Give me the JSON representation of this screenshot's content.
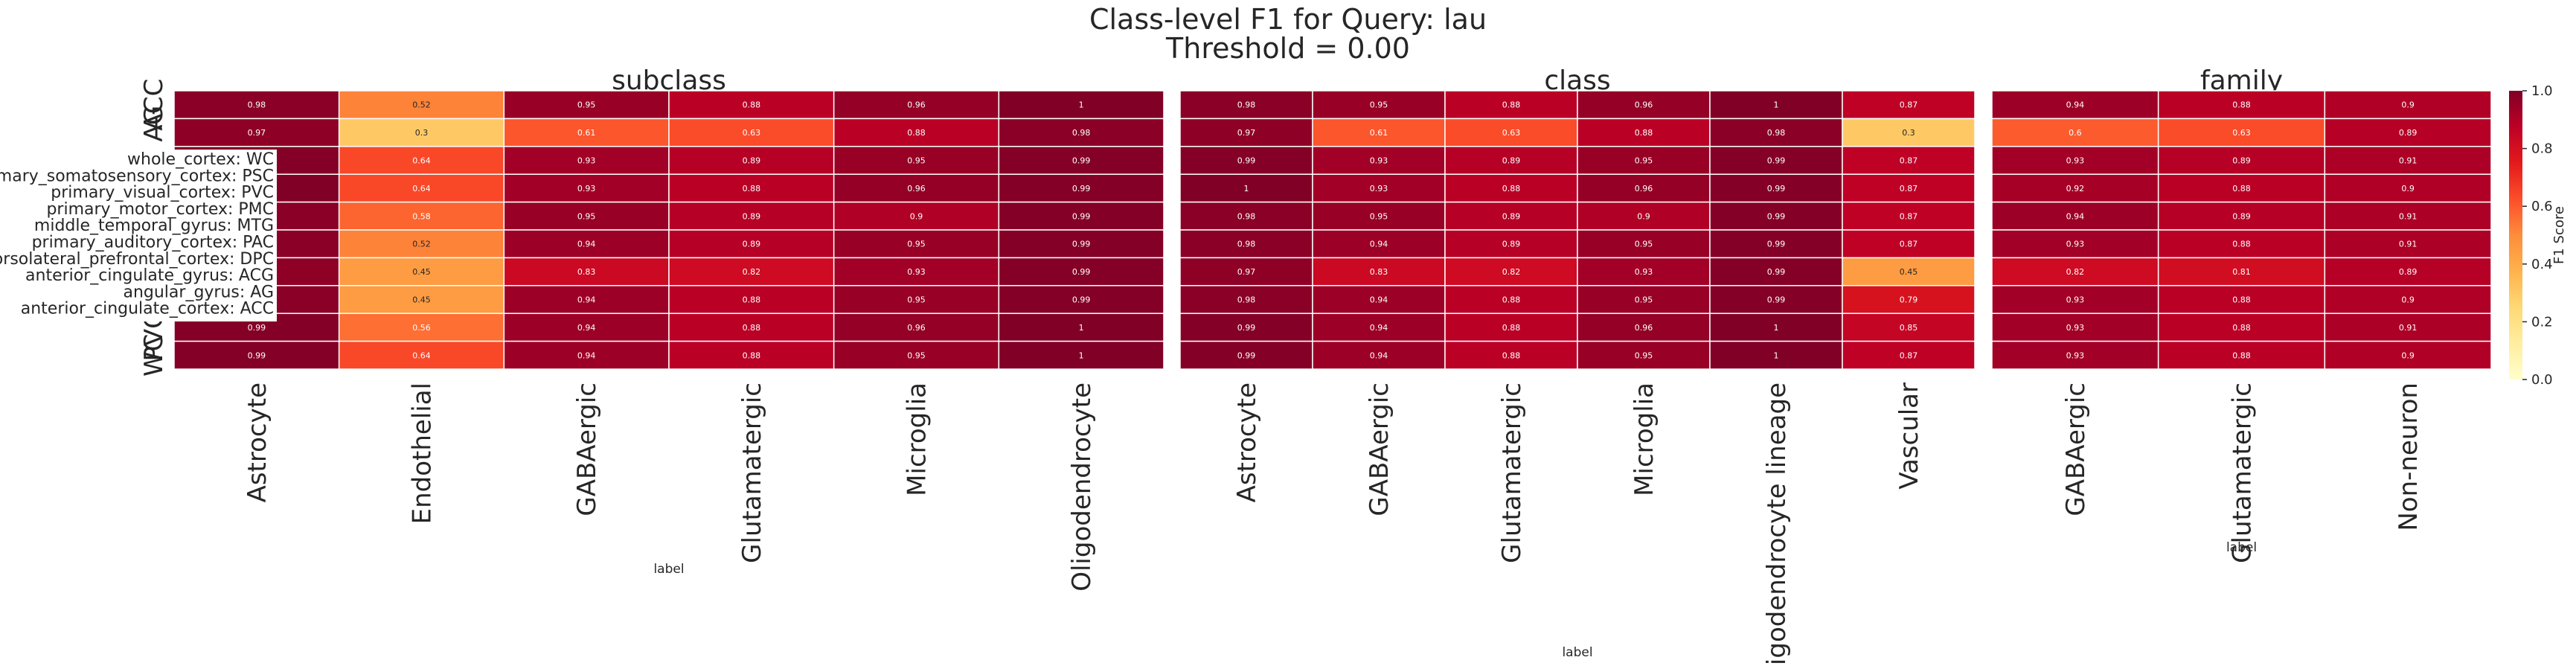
{
  "figure": {
    "title": "Class-level F1 for Query: lau",
    "subtitle": "Threshold = 0.00"
  },
  "legend": {
    "row_labels": [
      "whole_cortex: WC",
      "primary_somatosensory_cortex: PSC",
      "primary_visual_cortex: PVC",
      "primary_motor_cortex: PMC",
      "middle_temporal_gyrus: MTG",
      "primary_auditory_cortex: PAC",
      "dorsolateral_prefrontal_cortex: DPC",
      "anterior_cingulate_gyrus: ACG",
      "angular_gyrus: AG",
      "anterior_cingulate_cortex: ACC"
    ]
  },
  "y_axis": {
    "tick_labels": [
      "ACC",
      "AG",
      "",
      "",
      "",
      "",
      "",
      "",
      "",
      "",
      "PVC",
      "WC"
    ]
  },
  "colorbar": {
    "label": "F1 Score",
    "ticks": [
      "0.0",
      "0.2",
      "0.4",
      "0.6",
      "0.8",
      "1.0"
    ],
    "colormap": "YlOrRd",
    "range": [
      0,
      1
    ]
  },
  "chart_data": [
    {
      "type": "heatmap",
      "title": "subclass",
      "xlabel": "label",
      "categories": [
        "Astrocyte",
        "Endothelial",
        "GABAergic",
        "Glutamatergic",
        "Microglia",
        "Oligodendrocyte"
      ],
      "values": [
        [
          0.98,
          0.52,
          0.95,
          0.88,
          0.96,
          1
        ],
        [
          0.97,
          0.3,
          0.61,
          0.63,
          0.88,
          0.98
        ],
        [
          0.99,
          0.64,
          0.93,
          0.89,
          0.95,
          0.99
        ],
        [
          1,
          0.64,
          0.93,
          0.88,
          0.96,
          0.99
        ],
        [
          0.98,
          0.58,
          0.95,
          0.89,
          0.9,
          0.99
        ],
        [
          0.98,
          0.52,
          0.94,
          0.89,
          0.95,
          0.99
        ],
        [
          0.97,
          0.45,
          0.83,
          0.82,
          0.93,
          0.99
        ],
        [
          0.98,
          0.45,
          0.94,
          0.88,
          0.95,
          0.99
        ],
        [
          0.99,
          0.56,
          0.94,
          0.88,
          0.96,
          1
        ],
        [
          0.99,
          0.64,
          0.94,
          0.88,
          0.95,
          1
        ]
      ],
      "cell_labels": [
        [
          "0.98",
          "0.52",
          "0.95",
          "0.88",
          "0.96",
          "1"
        ],
        [
          "0.97",
          "0.3",
          "0.61",
          "0.63",
          "0.88",
          "0.98"
        ],
        [
          "",
          "0.64",
          "0.93",
          "0.89",
          "0.95",
          "0.99"
        ],
        [
          "",
          "0.64",
          "0.93",
          "0.88",
          "0.96",
          "0.99"
        ],
        [
          "",
          "0.58",
          "0.95",
          "0.89",
          "0.9",
          "0.99"
        ],
        [
          "",
          "0.52",
          "0.94",
          "0.89",
          "0.95",
          "0.99"
        ],
        [
          "",
          "0.45",
          "0.83",
          "0.82",
          "0.93",
          "0.99"
        ],
        [
          "",
          "0.45",
          "0.94",
          "0.88",
          "0.95",
          "0.99"
        ],
        [
          "0.99",
          "0.56",
          "0.94",
          "0.88",
          "0.96",
          "1"
        ],
        [
          "0.99",
          "0.64",
          "0.94",
          "0.88",
          "0.95",
          "1"
        ]
      ]
    },
    {
      "type": "heatmap",
      "title": "class",
      "xlabel": "label",
      "categories": [
        "Astrocyte",
        "GABAergic",
        "Glutamatergic",
        "Microglia",
        "Oligodendrocyte lineage",
        "Vascular"
      ],
      "values": [
        [
          0.98,
          0.95,
          0.88,
          0.96,
          1,
          0.87
        ],
        [
          0.97,
          0.61,
          0.63,
          0.88,
          0.98,
          0.3
        ],
        [
          0.99,
          0.93,
          0.89,
          0.95,
          0.99,
          0.87
        ],
        [
          1,
          0.93,
          0.88,
          0.96,
          0.99,
          0.87
        ],
        [
          0.98,
          0.95,
          0.89,
          0.9,
          0.99,
          0.87
        ],
        [
          0.98,
          0.94,
          0.89,
          0.95,
          0.99,
          0.87
        ],
        [
          0.97,
          0.83,
          0.82,
          0.93,
          0.99,
          0.45
        ],
        [
          0.98,
          0.94,
          0.88,
          0.95,
          0.99,
          0.79
        ],
        [
          0.99,
          0.94,
          0.88,
          0.96,
          1,
          0.85
        ],
        [
          0.99,
          0.94,
          0.88,
          0.95,
          1,
          0.87
        ]
      ],
      "cell_labels": [
        [
          "0.98",
          "0.95",
          "0.88",
          "0.96",
          "1",
          "0.87"
        ],
        [
          "0.97",
          "0.61",
          "0.63",
          "0.88",
          "0.98",
          "0.3"
        ],
        [
          "0.99",
          "0.93",
          "0.89",
          "0.95",
          "0.99",
          "0.87"
        ],
        [
          "1",
          "0.93",
          "0.88",
          "0.96",
          "0.99",
          "0.87"
        ],
        [
          "0.98",
          "0.95",
          "0.89",
          "0.9",
          "0.99",
          "0.87"
        ],
        [
          "0.98",
          "0.94",
          "0.89",
          "0.95",
          "0.99",
          "0.87"
        ],
        [
          "0.97",
          "0.83",
          "0.82",
          "0.93",
          "0.99",
          "0.45"
        ],
        [
          "0.98",
          "0.94",
          "0.88",
          "0.95",
          "0.99",
          "0.79"
        ],
        [
          "0.99",
          "0.94",
          "0.88",
          "0.96",
          "1",
          "0.85"
        ],
        [
          "0.99",
          "0.94",
          "0.88",
          "0.95",
          "1",
          "0.87"
        ]
      ]
    },
    {
      "type": "heatmap",
      "title": "family",
      "xlabel": "label",
      "categories": [
        "GABAergic",
        "Glutamatergic",
        "Non-neuron"
      ],
      "values": [
        [
          0.94,
          0.88,
          0.9
        ],
        [
          0.6,
          0.63,
          0.89
        ],
        [
          0.93,
          0.89,
          0.91
        ],
        [
          0.92,
          0.88,
          0.9
        ],
        [
          0.94,
          0.89,
          0.91
        ],
        [
          0.93,
          0.88,
          0.91
        ],
        [
          0.82,
          0.81,
          0.89
        ],
        [
          0.93,
          0.88,
          0.9
        ],
        [
          0.93,
          0.88,
          0.91
        ],
        [
          0.93,
          0.88,
          0.9
        ]
      ],
      "cell_labels": [
        [
          "0.94",
          "0.88",
          "0.9"
        ],
        [
          "0.6",
          "0.63",
          "0.89"
        ],
        [
          "0.93",
          "0.89",
          "0.91"
        ],
        [
          "0.92",
          "0.88",
          "0.9"
        ],
        [
          "0.94",
          "0.89",
          "0.91"
        ],
        [
          "0.93",
          "0.88",
          "0.91"
        ],
        [
          "0.82",
          "0.81",
          "0.89"
        ],
        [
          "0.93",
          "0.88",
          "0.9"
        ],
        [
          "0.93",
          "0.88",
          "0.91"
        ],
        [
          "0.93",
          "0.88",
          "0.9"
        ]
      ]
    }
  ]
}
